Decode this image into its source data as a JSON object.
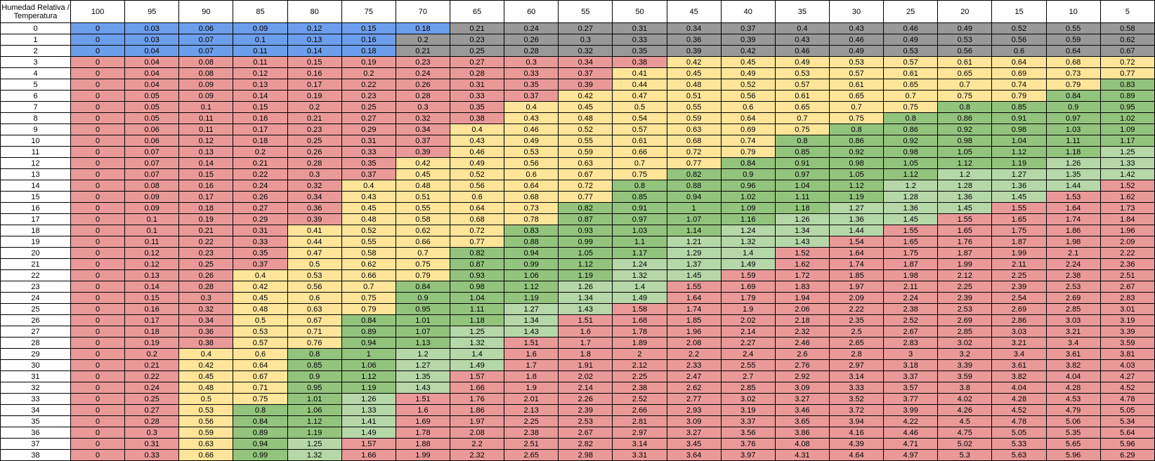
{
  "table": {
    "corner": "Humedad Relativa / Temperatura",
    "columns": [
      100,
      95,
      90,
      85,
      80,
      75,
      70,
      65,
      60,
      55,
      50,
      45,
      40,
      35,
      30,
      25,
      20,
      15,
      10,
      5
    ],
    "rows": [
      {
        "label": 0,
        "cells": [
          0,
          0.03,
          0.06,
          0.09,
          0.12,
          0.15,
          0.18,
          0.21,
          0.24,
          0.27,
          0.31,
          0.34,
          0.37,
          0.4,
          0.43,
          0.46,
          0.49,
          0.52,
          0.55,
          0.58
        ]
      },
      {
        "label": 1,
        "cells": [
          0,
          0.03,
          0.07,
          0.1,
          0.13,
          0.16,
          0.2,
          0.23,
          0.26,
          0.3,
          0.33,
          0.36,
          0.39,
          0.43,
          0.46,
          0.49,
          0.53,
          0.56,
          0.59,
          0.62
        ]
      },
      {
        "label": 2,
        "cells": [
          0,
          0.04,
          0.07,
          0.11,
          0.14,
          0.18,
          0.21,
          0.25,
          0.28,
          0.32,
          0.35,
          0.39,
          0.42,
          0.46,
          0.49,
          0.53,
          0.56,
          0.6,
          0.64,
          0.67
        ]
      },
      {
        "label": 3,
        "cells": [
          0,
          0.04,
          0.08,
          0.11,
          0.15,
          0.19,
          0.23,
          0.27,
          0.3,
          0.34,
          0.38,
          0.42,
          0.45,
          0.49,
          0.53,
          0.57,
          0.61,
          0.64,
          0.68,
          0.72
        ]
      },
      {
        "label": 4,
        "cells": [
          0,
          0.04,
          0.08,
          0.12,
          0.16,
          0.2,
          0.24,
          0.28,
          0.33,
          0.37,
          0.41,
          0.45,
          0.49,
          0.53,
          0.57,
          0.61,
          0.65,
          0.69,
          0.73,
          0.77
        ]
      },
      {
        "label": 5,
        "cells": [
          0,
          0.04,
          0.09,
          0.13,
          0.17,
          0.22,
          0.26,
          0.31,
          0.35,
          0.39,
          0.44,
          0.48,
          0.52,
          0.57,
          0.61,
          0.65,
          0.7,
          0.74,
          0.79,
          0.83
        ]
      },
      {
        "label": 6,
        "cells": [
          0,
          0.05,
          0.09,
          0.14,
          0.19,
          0.23,
          0.28,
          0.33,
          0.37,
          0.42,
          0.47,
          0.51,
          0.56,
          0.61,
          0.65,
          0.7,
          0.75,
          0.79,
          0.84,
          0.89
        ]
      },
      {
        "label": 7,
        "cells": [
          0,
          0.05,
          0.1,
          0.15,
          0.2,
          0.25,
          0.3,
          0.35,
          0.4,
          0.45,
          0.5,
          0.55,
          0.6,
          0.65,
          0.7,
          0.75,
          0.8,
          0.85,
          0.9,
          0.95
        ]
      },
      {
        "label": 8,
        "cells": [
          0,
          0.05,
          0.11,
          0.16,
          0.21,
          0.27,
          0.32,
          0.38,
          0.43,
          0.48,
          0.54,
          0.59,
          0.64,
          0.7,
          0.75,
          0.8,
          0.86,
          0.91,
          0.97,
          1.02
        ]
      },
      {
        "label": 9,
        "cells": [
          0,
          0.06,
          0.11,
          0.17,
          0.23,
          0.29,
          0.34,
          0.4,
          0.46,
          0.52,
          0.57,
          0.63,
          0.69,
          0.75,
          0.8,
          0.86,
          0.92,
          0.98,
          1.03,
          1.09
        ]
      },
      {
        "label": 10,
        "cells": [
          0,
          0.06,
          0.12,
          0.18,
          0.25,
          0.31,
          0.37,
          0.43,
          0.49,
          0.55,
          0.61,
          0.68,
          0.74,
          0.8,
          0.86,
          0.92,
          0.98,
          1.04,
          1.11,
          1.17
        ]
      },
      {
        "label": 11,
        "cells": [
          0,
          0.07,
          0.13,
          0.2,
          0.26,
          0.33,
          0.39,
          0.46,
          0.53,
          0.59,
          0.66,
          0.72,
          0.79,
          0.85,
          0.92,
          0.98,
          1.05,
          1.12,
          1.18,
          1.25
        ]
      },
      {
        "label": 12,
        "cells": [
          0,
          0.07,
          0.14,
          0.21,
          0.28,
          0.35,
          0.42,
          0.49,
          0.56,
          0.63,
          0.7,
          0.77,
          0.84,
          0.91,
          0.98,
          1.05,
          1.12,
          1.19,
          1.26,
          1.33
        ]
      },
      {
        "label": 13,
        "cells": [
          0,
          0.07,
          0.15,
          0.22,
          0.3,
          0.37,
          0.45,
          0.52,
          0.6,
          0.67,
          0.75,
          0.82,
          0.9,
          0.97,
          1.05,
          1.12,
          1.2,
          1.27,
          1.35,
          1.42
        ]
      },
      {
        "label": 14,
        "cells": [
          0,
          0.08,
          0.16,
          0.24,
          0.32,
          0.4,
          0.48,
          0.56,
          0.64,
          0.72,
          0.8,
          0.88,
          0.96,
          1.04,
          1.12,
          1.2,
          1.28,
          1.36,
          1.44,
          1.52
        ]
      },
      {
        "label": 15,
        "cells": [
          0,
          0.09,
          0.17,
          0.26,
          0.34,
          0.43,
          0.51,
          0.6,
          0.68,
          0.77,
          0.85,
          0.94,
          1.02,
          1.11,
          1.19,
          1.28,
          1.36,
          1.45,
          1.53,
          1.62
        ]
      },
      {
        "label": 16,
        "cells": [
          0,
          0.09,
          0.18,
          0.27,
          0.36,
          0.45,
          0.55,
          0.64,
          0.73,
          0.82,
          0.91,
          1,
          1.09,
          1.18,
          1.27,
          1.36,
          1.45,
          1.55,
          1.64,
          1.73
        ]
      },
      {
        "label": 17,
        "cells": [
          0,
          0.1,
          0.19,
          0.29,
          0.39,
          0.48,
          0.58,
          0.68,
          0.78,
          0.87,
          0.97,
          1.07,
          1.16,
          1.26,
          1.36,
          1.45,
          1.55,
          1.65,
          1.74,
          1.84
        ]
      },
      {
        "label": 18,
        "cells": [
          0,
          0.1,
          0.21,
          0.31,
          0.41,
          0.52,
          0.62,
          0.72,
          0.83,
          0.93,
          1.03,
          1.14,
          1.24,
          1.34,
          1.44,
          1.55,
          1.65,
          1.75,
          1.86,
          1.96
        ]
      },
      {
        "label": 19,
        "cells": [
          0,
          0.11,
          0.22,
          0.33,
          0.44,
          0.55,
          0.66,
          0.77,
          0.88,
          0.99,
          1.1,
          1.21,
          1.32,
          1.43,
          1.54,
          1.65,
          1.76,
          1.87,
          1.98,
          2.09
        ]
      },
      {
        "label": 20,
        "cells": [
          0,
          0.12,
          0.23,
          0.35,
          0.47,
          0.58,
          0.7,
          0.82,
          0.94,
          1.05,
          1.17,
          1.29,
          1.4,
          1.52,
          1.64,
          1.75,
          1.87,
          1.99,
          2.1,
          2.22
        ]
      },
      {
        "label": 21,
        "cells": [
          0,
          0.12,
          0.25,
          0.37,
          0.5,
          0.62,
          0.75,
          0.87,
          0.99,
          1.12,
          1.24,
          1.37,
          1.49,
          1.62,
          1.74,
          1.87,
          1.99,
          2.11,
          2.24,
          2.36
        ]
      },
      {
        "label": 22,
        "cells": [
          0,
          0.13,
          0.26,
          0.4,
          0.53,
          0.66,
          0.79,
          0.93,
          1.06,
          1.19,
          1.32,
          1.45,
          1.59,
          1.72,
          1.85,
          1.98,
          2.12,
          2.25,
          2.38,
          2.51
        ]
      },
      {
        "label": 23,
        "cells": [
          0,
          0.14,
          0.28,
          0.42,
          0.56,
          0.7,
          0.84,
          0.98,
          1.12,
          1.26,
          1.4,
          1.55,
          1.69,
          1.83,
          1.97,
          2.11,
          2.25,
          2.39,
          2.53,
          2.67
        ]
      },
      {
        "label": 24,
        "cells": [
          0,
          0.15,
          0.3,
          0.45,
          0.6,
          0.75,
          0.9,
          1.04,
          1.19,
          1.34,
          1.49,
          1.64,
          1.79,
          1.94,
          2.09,
          2.24,
          2.39,
          2.54,
          2.69,
          2.83
        ]
      },
      {
        "label": 25,
        "cells": [
          0,
          0.16,
          0.32,
          0.48,
          0.63,
          0.79,
          0.95,
          1.11,
          1.27,
          1.43,
          1.58,
          1.74,
          1.9,
          2.06,
          2.22,
          2.38,
          2.53,
          2.69,
          2.85,
          3.01
        ]
      },
      {
        "label": 26,
        "cells": [
          0,
          0.17,
          0.34,
          0.5,
          0.67,
          0.84,
          1.01,
          1.18,
          1.34,
          1.51,
          1.68,
          1.85,
          2.02,
          2.18,
          2.35,
          2.52,
          2.69,
          2.86,
          3.03,
          3.19
        ]
      },
      {
        "label": 27,
        "cells": [
          0,
          0.18,
          0.36,
          0.53,
          0.71,
          0.89,
          1.07,
          1.25,
          1.43,
          1.6,
          1.78,
          1.96,
          2.14,
          2.32,
          2.5,
          2.67,
          2.85,
          3.03,
          3.21,
          3.39
        ]
      },
      {
        "label": 28,
        "cells": [
          0,
          0.19,
          0.38,
          0.57,
          0.76,
          0.94,
          1.13,
          1.32,
          1.51,
          1.7,
          1.89,
          2.08,
          2.27,
          2.46,
          2.65,
          2.83,
          3.02,
          3.21,
          3.4,
          3.59
        ]
      },
      {
        "label": 29,
        "cells": [
          0,
          0.2,
          0.4,
          0.6,
          0.8,
          1,
          1.2,
          1.4,
          1.6,
          1.8,
          2,
          2.2,
          2.4,
          2.6,
          2.8,
          3,
          3.2,
          3.4,
          3.61,
          3.81
        ]
      },
      {
        "label": 30,
        "cells": [
          0,
          0.21,
          0.42,
          0.64,
          0.85,
          1.06,
          1.27,
          1.49,
          1.7,
          1.91,
          2.12,
          2.33,
          2.55,
          2.76,
          2.97,
          3.18,
          3.39,
          3.61,
          3.82,
          4.03
        ]
      },
      {
        "label": 31,
        "cells": [
          0,
          0.22,
          0.45,
          0.67,
          0.9,
          1.12,
          1.35,
          1.57,
          1.8,
          2.02,
          2.25,
          2.47,
          2.7,
          2.92,
          3.14,
          3.37,
          3.59,
          3.82,
          4.04,
          4.27
        ]
      },
      {
        "label": 32,
        "cells": [
          0,
          0.24,
          0.48,
          0.71,
          0.95,
          1.19,
          1.43,
          1.66,
          1.9,
          2.14,
          2.38,
          2.62,
          2.85,
          3.09,
          3.33,
          3.57,
          3.8,
          4.04,
          4.28,
          4.52
        ]
      },
      {
        "label": 33,
        "cells": [
          0,
          0.25,
          0.5,
          0.75,
          1.01,
          1.26,
          1.51,
          1.76,
          2.01,
          2.26,
          2.52,
          2.77,
          3.02,
          3.27,
          3.52,
          3.77,
          4.02,
          4.28,
          4.53,
          4.78
        ]
      },
      {
        "label": 34,
        "cells": [
          0,
          0.27,
          0.53,
          0.8,
          1.06,
          1.33,
          1.6,
          1.86,
          2.13,
          2.39,
          2.66,
          2.93,
          3.19,
          3.46,
          3.72,
          3.99,
          4.26,
          4.52,
          4.79,
          5.05
        ]
      },
      {
        "label": 35,
        "cells": [
          0,
          0.28,
          0.56,
          0.84,
          1.12,
          1.41,
          1.69,
          1.97,
          2.25,
          2.53,
          2.81,
          3.09,
          3.37,
          3.65,
          3.94,
          4.22,
          4.5,
          4.78,
          5.06,
          5.34
        ]
      },
      {
        "label": 36,
        "cells": [
          0,
          0.3,
          0.59,
          0.89,
          1.19,
          1.49,
          1.78,
          2.08,
          2.38,
          2.67,
          2.97,
          3.27,
          3.56,
          3.86,
          4.16,
          4.46,
          4.75,
          5.05,
          5.35,
          5.64
        ]
      },
      {
        "label": 37,
        "cells": [
          0,
          0.31,
          0.63,
          0.94,
          1.25,
          1.57,
          1.88,
          2.2,
          2.51,
          2.82,
          3.14,
          3.45,
          3.76,
          4.08,
          4.39,
          4.71,
          5.02,
          5.33,
          5.65,
          5.96
        ]
      },
      {
        "label": 38,
        "cells": [
          0,
          0.33,
          0.66,
          0.99,
          1.32,
          1.66,
          1.99,
          2.32,
          2.65,
          2.98,
          3.31,
          3.64,
          3.97,
          4.31,
          4.64,
          4.97,
          5.3,
          5.63,
          5.96,
          6.29
        ]
      }
    ]
  },
  "cell_colors": {
    "cold_rows_below": 3,
    "cold_bands": [
      {
        "below": 0.2,
        "color": "#6d9eeb"
      }
    ],
    "cold_else": "#999999",
    "bands": [
      {
        "below": 0.4,
        "color": "#ea9999"
      },
      {
        "below": 0.8,
        "color": "#ffe599"
      },
      {
        "below": 1.2,
        "color": "#93c47d"
      },
      {
        "below": 1.5,
        "color": "#b6d7a8"
      }
    ],
    "else": "#ea9999"
  }
}
